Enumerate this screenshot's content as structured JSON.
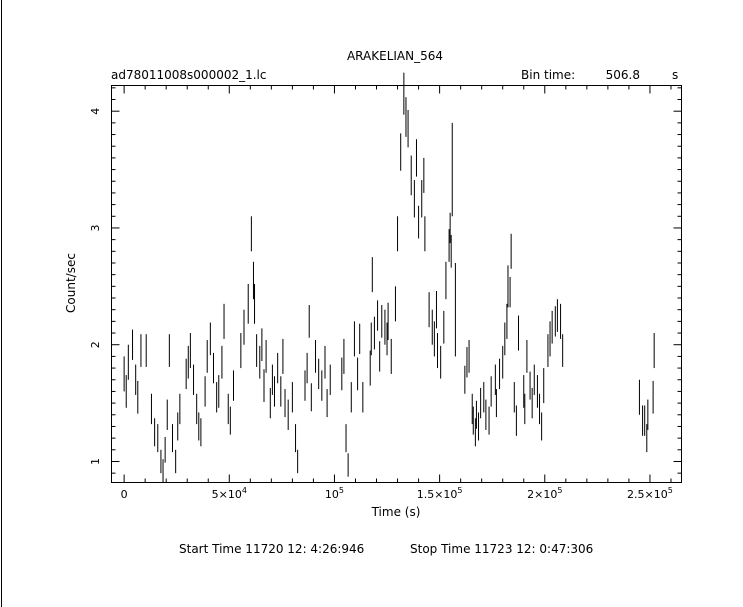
{
  "header": {
    "title": "ARAKELIAN_564",
    "file": "ad78011008s000002_1.lc",
    "bin_label": "Bin time:",
    "bin_value": "506.8",
    "bin_unit": "s"
  },
  "footer": {
    "start": "Start Time 11720 12: 4:26:946",
    "stop": "Stop Time 11723 12: 0:47:306"
  },
  "chart_data": {
    "type": "scatter",
    "xlabel": "Time (s)",
    "ylabel": "Count/sec",
    "xlim": [
      -6000,
      265000
    ],
    "ylim": [
      0.82,
      4.22
    ],
    "xticks": [
      {
        "v": 0,
        "t": "0"
      },
      {
        "v": 50000,
        "t": "5×10",
        "e": "4"
      },
      {
        "v": 100000,
        "t": "10",
        "e": "5"
      },
      {
        "v": 150000,
        "t": "1.5×10",
        "e": "5"
      },
      {
        "v": 200000,
        "t": "2×10",
        "e": "5"
      },
      {
        "v": 250000,
        "t": "2.5×10",
        "e": "5"
      }
    ],
    "yticks": [
      {
        "v": 1,
        "t": "1"
      },
      {
        "v": 2,
        "t": "2"
      },
      {
        "v": 3,
        "t": "3"
      },
      {
        "v": 4,
        "t": "4"
      }
    ],
    "series": [
      {
        "points": [
          [
            0,
            1.75,
            0.15
          ],
          [
            1000,
            1.6,
            0.14
          ],
          [
            2000,
            1.85,
            0.15
          ],
          [
            4000,
            2.0,
            0.13
          ],
          [
            5500,
            1.7,
            0.13
          ],
          [
            6500,
            1.55,
            0.14
          ],
          [
            8000,
            1.95,
            0.14
          ],
          [
            10500,
            1.95,
            0.14
          ],
          [
            13000,
            1.45,
            0.13
          ],
          [
            14500,
            1.25,
            0.12
          ],
          [
            16000,
            1.2,
            0.12
          ],
          [
            17500,
            1.0,
            0.1
          ],
          [
            18500,
            0.92,
            0.1
          ],
          [
            19500,
            1.1,
            0.11
          ],
          [
            20500,
            1.4,
            0.13
          ],
          [
            21500,
            1.95,
            0.14
          ],
          [
            23000,
            1.2,
            0.12
          ],
          [
            24500,
            1.0,
            0.1
          ],
          [
            25500,
            1.3,
            0.12
          ],
          [
            26500,
            1.45,
            0.13
          ],
          [
            29500,
            1.75,
            0.13
          ],
          [
            30500,
            1.85,
            0.14
          ],
          [
            31500,
            1.95,
            0.15
          ],
          [
            33000,
            1.7,
            0.13
          ],
          [
            34500,
            1.45,
            0.13
          ],
          [
            35500,
            1.3,
            0.12
          ],
          [
            36500,
            1.25,
            0.12
          ],
          [
            38500,
            1.6,
            0.13
          ],
          [
            39500,
            1.9,
            0.14
          ],
          [
            41000,
            2.05,
            0.14
          ],
          [
            42500,
            1.8,
            0.13
          ],
          [
            44000,
            1.55,
            0.13
          ],
          [
            45000,
            1.6,
            0.14
          ],
          [
            46500,
            1.85,
            0.14
          ],
          [
            47500,
            2.2,
            0.15
          ],
          [
            49500,
            1.45,
            0.13
          ],
          [
            50500,
            1.35,
            0.12
          ],
          [
            52000,
            1.65,
            0.13
          ],
          [
            55500,
            1.95,
            0.15
          ],
          [
            57000,
            2.15,
            0.15
          ],
          [
            59000,
            2.35,
            0.17
          ],
          [
            60500,
            2.95,
            0.15
          ],
          [
            61500,
            2.55,
            0.16
          ],
          [
            62000,
            2.35,
            0.17
          ],
          [
            63000,
            1.95,
            0.14
          ],
          [
            64500,
            1.85,
            0.14
          ],
          [
            65500,
            2.0,
            0.14
          ],
          [
            66500,
            1.65,
            0.14
          ],
          [
            67500,
            1.9,
            0.14
          ],
          [
            69500,
            1.5,
            0.13
          ],
          [
            70500,
            1.7,
            0.13
          ],
          [
            71500,
            1.6,
            0.13
          ],
          [
            73000,
            1.8,
            0.13
          ],
          [
            74500,
            1.6,
            0.13
          ],
          [
            75500,
            1.9,
            0.15
          ],
          [
            76500,
            1.5,
            0.12
          ],
          [
            78000,
            1.4,
            0.13
          ],
          [
            80000,
            1.55,
            0.13
          ],
          [
            81500,
            1.2,
            0.12
          ],
          [
            82500,
            1.0,
            0.1
          ],
          [
            86000,
            1.65,
            0.13
          ],
          [
            87000,
            1.8,
            0.13
          ],
          [
            88000,
            2.2,
            0.14
          ],
          [
            89000,
            1.55,
            0.12
          ],
          [
            91000,
            1.9,
            0.14
          ],
          [
            92500,
            1.75,
            0.13
          ],
          [
            94000,
            1.65,
            0.13
          ],
          [
            95500,
            1.85,
            0.14
          ],
          [
            96500,
            1.5,
            0.12
          ],
          [
            98000,
            1.7,
            0.13
          ],
          [
            103500,
            1.75,
            0.14
          ],
          [
            104500,
            1.9,
            0.15
          ],
          [
            105500,
            1.2,
            0.12
          ],
          [
            106500,
            0.97,
            0.1
          ],
          [
            108000,
            1.55,
            0.13
          ],
          [
            109500,
            2.05,
            0.15
          ],
          [
            111000,
            1.75,
            0.14
          ],
          [
            112000,
            2.05,
            0.13
          ],
          [
            113500,
            1.55,
            0.13
          ],
          [
            117000,
            1.8,
            0.15
          ],
          [
            117500,
            2.05,
            0.14
          ],
          [
            118000,
            2.6,
            0.15
          ],
          [
            119000,
            2.1,
            0.14
          ],
          [
            120500,
            2.25,
            0.13
          ],
          [
            121500,
            1.9,
            0.13
          ],
          [
            122500,
            2.2,
            0.14
          ],
          [
            124000,
            2.15,
            0.15
          ],
          [
            125000,
            2.05,
            0.14
          ],
          [
            125500,
            2.2,
            0.16
          ],
          [
            127000,
            1.9,
            0.15
          ],
          [
            129000,
            2.35,
            0.15
          ],
          [
            130000,
            2.95,
            0.15
          ],
          [
            131500,
            3.65,
            0.16
          ],
          [
            133000,
            4.15,
            0.18
          ],
          [
            134000,
            3.95,
            0.17
          ],
          [
            135000,
            3.85,
            0.16
          ],
          [
            136500,
            3.45,
            0.17
          ],
          [
            138000,
            3.25,
            0.16
          ],
          [
            139000,
            3.6,
            0.16
          ],
          [
            140000,
            3.05,
            0.14
          ],
          [
            141500,
            3.25,
            0.16
          ],
          [
            142500,
            3.45,
            0.15
          ],
          [
            143000,
            2.95,
            0.15
          ],
          [
            145000,
            2.3,
            0.15
          ],
          [
            146500,
            2.15,
            0.15
          ],
          [
            147500,
            2.05,
            0.15
          ],
          [
            148500,
            2.3,
            0.16
          ],
          [
            149000,
            1.95,
            0.15
          ],
          [
            150500,
            1.85,
            0.14
          ],
          [
            152000,
            2.15,
            0.14
          ],
          [
            153000,
            2.55,
            0.16
          ],
          [
            154500,
            2.85,
            0.14
          ],
          [
            155000,
            3.0,
            0.13
          ],
          [
            155500,
            2.8,
            0.14
          ],
          [
            156000,
            3.5,
            0.4
          ],
          [
            157500,
            2.3,
            0.4
          ],
          [
            162000,
            1.7,
            0.12
          ],
          [
            163000,
            1.85,
            0.13
          ],
          [
            164000,
            1.9,
            0.14
          ],
          [
            165500,
            1.45,
            0.13
          ],
          [
            166000,
            1.35,
            0.12
          ],
          [
            167000,
            1.25,
            0.12
          ],
          [
            167500,
            1.4,
            0.12
          ],
          [
            168500,
            1.3,
            0.12
          ],
          [
            169500,
            1.5,
            0.13
          ],
          [
            171000,
            1.55,
            0.13
          ],
          [
            172000,
            1.4,
            0.13
          ],
          [
            173500,
            1.35,
            0.12
          ],
          [
            174500,
            1.6,
            0.13
          ],
          [
            176500,
            1.7,
            0.13
          ],
          [
            177000,
            1.5,
            0.12
          ],
          [
            178500,
            1.75,
            0.13
          ],
          [
            180000,
            1.85,
            0.14
          ],
          [
            181000,
            2.05,
            0.14
          ],
          [
            182000,
            2.2,
            0.15
          ],
          [
            182500,
            2.5,
            0.18
          ],
          [
            183500,
            2.45,
            0.13
          ],
          [
            184000,
            2.8,
            0.15
          ],
          [
            185500,
            1.55,
            0.13
          ],
          [
            186500,
            1.35,
            0.13
          ],
          [
            187500,
            2.1,
            0.15
          ],
          [
            190000,
            1.6,
            0.14
          ],
          [
            190500,
            1.45,
            0.13
          ],
          [
            191500,
            1.9,
            0.14
          ],
          [
            193000,
            1.65,
            0.12
          ],
          [
            194000,
            1.5,
            0.13
          ],
          [
            195000,
            1.7,
            0.13
          ],
          [
            196500,
            1.6,
            0.14
          ],
          [
            197500,
            1.45,
            0.13
          ],
          [
            198500,
            1.3,
            0.12
          ],
          [
            199500,
            1.65,
            0.15
          ],
          [
            201500,
            1.95,
            0.14
          ],
          [
            202500,
            2.05,
            0.15
          ],
          [
            203500,
            2.15,
            0.14
          ],
          [
            205000,
            2.2,
            0.13
          ],
          [
            206000,
            2.25,
            0.14
          ],
          [
            207500,
            2.2,
            0.15
          ],
          [
            208500,
            1.95,
            0.14
          ],
          [
            245000,
            1.55,
            0.15
          ],
          [
            246500,
            1.35,
            0.13
          ],
          [
            247500,
            1.35,
            0.13
          ],
          [
            248500,
            1.2,
            0.12
          ],
          [
            249000,
            1.4,
            0.13
          ],
          [
            251500,
            1.55,
            0.14
          ],
          [
            252000,
            1.95,
            0.15
          ]
        ]
      }
    ]
  }
}
